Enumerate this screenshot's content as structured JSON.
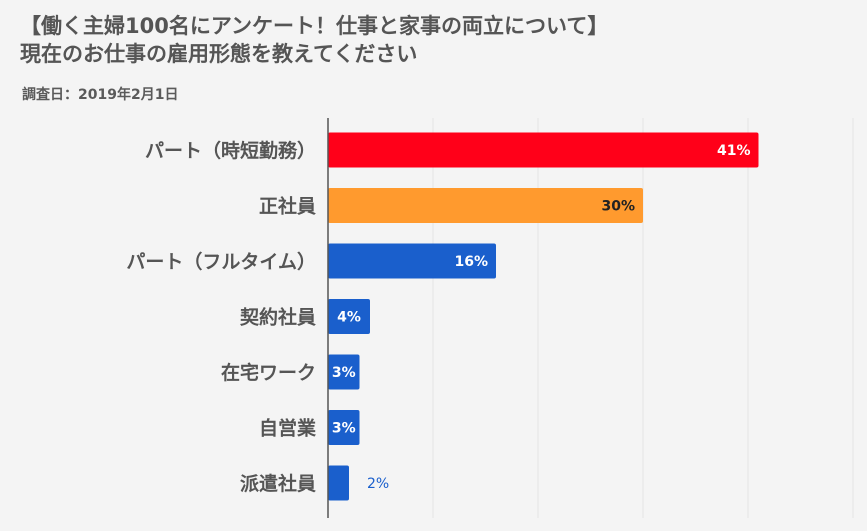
{
  "title_lines": [
    "【働く主婦100名にアンケート！仕事と家事の両立について】",
    "現在のお仕事の雇用形態を教えてください"
  ],
  "survey_date": "調査日：2019年2月1日",
  "chart_data": {
    "type": "bar",
    "orientation": "horizontal",
    "title": "【働く主婦100名にアンケート！仕事と家事の両立について】現在のお仕事の雇用形態を教えてください",
    "subtitle": "調査日：2019年2月1日",
    "xlabel": "",
    "ylabel": "",
    "categories": [
      "パート（時短勤務）",
      "正社員",
      "パート（フルタイム）",
      "契約社員",
      "在宅ワーク",
      "自営業",
      "派遣社員"
    ],
    "values": [
      41,
      30,
      16,
      4,
      3,
      3,
      2
    ],
    "value_labels": [
      "41%",
      "30%",
      "16%",
      "4%",
      "3%",
      "3%",
      "2%"
    ],
    "bar_colors": [
      "#ff0019",
      "#ff9a2e",
      "#1a5fcc",
      "#1a5fcc",
      "#1a5fcc",
      "#1a5fcc",
      "#1a5fcc"
    ],
    "xlim": [
      0,
      50
    ],
    "grid": true,
    "legend": "none"
  },
  "colors": {
    "background": "#f4f4f4",
    "grid": "#e3e3e3",
    "axis": "#555555",
    "category_text": "#555555",
    "label_inside": "#ffffff",
    "label_outside_inside_dark": "#222222",
    "label_outside": "#1a5fcc"
  }
}
